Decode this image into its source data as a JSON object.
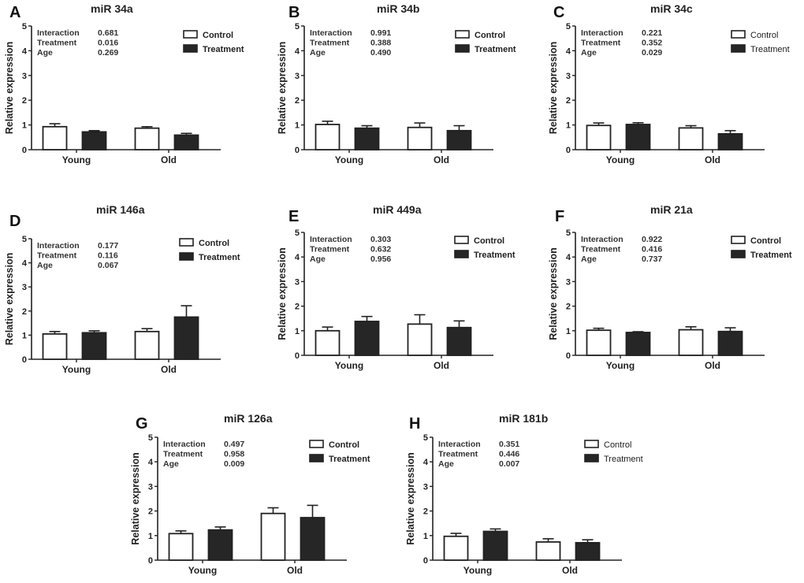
{
  "chart_data": [
    {
      "type": "bar",
      "panel": "A",
      "title": "miR 34a",
      "ylabel": "Relative expression",
      "xlabel": "",
      "ylim": [
        0,
        5
      ],
      "yticks": [
        "0",
        "1",
        "2",
        "3",
        "4",
        "5"
      ],
      "categories": [
        "Young",
        "Old"
      ],
      "stats": [
        {
          "label": "Interaction",
          "value": "0.681"
        },
        {
          "label": "Treatment",
          "value": "0.016"
        },
        {
          "label": "Age",
          "value": "0.269"
        }
      ],
      "series": [
        {
          "name": "Control",
          "fill": "#ffffff",
          "values": [
            0.93,
            0.87
          ],
          "errors": [
            0.12,
            0.06
          ]
        },
        {
          "name": "Treatment",
          "fill": "#262626",
          "values": [
            0.72,
            0.59
          ],
          "errors": [
            0.05,
            0.07
          ]
        }
      ],
      "legend_position": "top-right",
      "legend_style": "bold"
    },
    {
      "type": "bar",
      "panel": "B",
      "title": "miR 34b",
      "ylabel": "Relative expression",
      "xlabel": "",
      "ylim": [
        0,
        5
      ],
      "yticks": [
        "0",
        "1",
        "2",
        "3",
        "4",
        "5"
      ],
      "categories": [
        "Young",
        "Old"
      ],
      "stats": [
        {
          "label": "Interaction",
          "value": "0.991"
        },
        {
          "label": "Treatment",
          "value": "0.388"
        },
        {
          "label": "Age",
          "value": "0.490"
        }
      ],
      "series": [
        {
          "name": "Control",
          "fill": "#ffffff",
          "values": [
            1.02,
            0.9
          ],
          "errors": [
            0.13,
            0.18
          ]
        },
        {
          "name": "Treatment",
          "fill": "#262626",
          "values": [
            0.87,
            0.77
          ],
          "errors": [
            0.1,
            0.2
          ]
        }
      ],
      "legend_position": "top-right",
      "legend_style": "bold"
    },
    {
      "type": "bar",
      "panel": "C",
      "title": "miR 34c",
      "ylabel": "Relative expression",
      "xlabel": "",
      "ylim": [
        0,
        5
      ],
      "yticks": [
        "0",
        "1",
        "2",
        "3",
        "4",
        "5"
      ],
      "categories": [
        "Young",
        "Old"
      ],
      "stats": [
        {
          "label": "Interaction",
          "value": "0.221"
        },
        {
          "label": "Treatment",
          "value": "0.352"
        },
        {
          "label": "Age",
          "value": "0.029"
        }
      ],
      "series": [
        {
          "name": "Control",
          "fill": "#ffffff",
          "values": [
            0.98,
            0.88
          ],
          "errors": [
            0.1,
            0.09
          ]
        },
        {
          "name": "Treatment",
          "fill": "#262626",
          "values": [
            1.02,
            0.64
          ],
          "errors": [
            0.07,
            0.13
          ]
        }
      ],
      "legend_position": "top-right",
      "legend_style": "normal"
    },
    {
      "type": "bar",
      "panel": "D",
      "title": "miR 146a",
      "ylabel": "Relative expression",
      "xlabel": "",
      "ylim": [
        0,
        5
      ],
      "yticks": [
        "0",
        "1",
        "2",
        "3",
        "4",
        "5"
      ],
      "categories": [
        "Young",
        "Old"
      ],
      "stats": [
        {
          "label": "Interaction",
          "value": "0.177"
        },
        {
          "label": "Treatment",
          "value": "0.116"
        },
        {
          "label": "Age",
          "value": "0.067"
        }
      ],
      "series": [
        {
          "name": "Control",
          "fill": "#ffffff",
          "values": [
            1.05,
            1.15
          ],
          "errors": [
            0.1,
            0.12
          ]
        },
        {
          "name": "Treatment",
          "fill": "#262626",
          "values": [
            1.1,
            1.75
          ],
          "errors": [
            0.08,
            0.47
          ]
        }
      ],
      "legend_position": "top-right",
      "legend_style": "bold"
    },
    {
      "type": "bar",
      "panel": "E",
      "title": "miR 449a",
      "ylabel": "Relative expression",
      "xlabel": "",
      "ylim": [
        0,
        5
      ],
      "yticks": [
        "0",
        "1",
        "2",
        "3",
        "4",
        "5"
      ],
      "categories": [
        "Young",
        "Old"
      ],
      "stats": [
        {
          "label": "Interaction",
          "value": "0.303"
        },
        {
          "label": "Treatment",
          "value": "0.632"
        },
        {
          "label": "Age",
          "value": "0.956"
        }
      ],
      "series": [
        {
          "name": "Control",
          "fill": "#ffffff",
          "values": [
            1.0,
            1.27
          ],
          "errors": [
            0.15,
            0.38
          ]
        },
        {
          "name": "Treatment",
          "fill": "#262626",
          "values": [
            1.38,
            1.13
          ],
          "errors": [
            0.2,
            0.27
          ]
        }
      ],
      "legend_position": "top-right",
      "legend_style": "bold"
    },
    {
      "type": "bar",
      "panel": "F",
      "title": "miR 21a",
      "ylabel": "Relative expression",
      "xlabel": "",
      "ylim": [
        0,
        5
      ],
      "yticks": [
        "0",
        "1",
        "2",
        "3",
        "4",
        "5"
      ],
      "categories": [
        "Young",
        "Old"
      ],
      "stats": [
        {
          "label": "Interaction",
          "value": "0.922"
        },
        {
          "label": "Treatment",
          "value": "0.416"
        },
        {
          "label": "Age",
          "value": "0.737"
        }
      ],
      "series": [
        {
          "name": "Control",
          "fill": "#ffffff",
          "values": [
            1.02,
            1.04
          ],
          "errors": [
            0.08,
            0.12
          ]
        },
        {
          "name": "Treatment",
          "fill": "#262626",
          "values": [
            0.93,
            0.97
          ],
          "errors": [
            0.03,
            0.15
          ]
        }
      ],
      "legend_position": "top-right",
      "legend_style": "bold"
    },
    {
      "type": "bar",
      "panel": "G",
      "title": "miR 126a",
      "ylabel": "Relative expression",
      "xlabel": "",
      "ylim": [
        0,
        5
      ],
      "yticks": [
        "0",
        "1",
        "2",
        "3",
        "4",
        "5"
      ],
      "categories": [
        "Young",
        "Old"
      ],
      "stats": [
        {
          "label": "Interaction",
          "value": "0.497"
        },
        {
          "label": "Treatment",
          "value": "0.958"
        },
        {
          "label": "Age",
          "value": "0.009"
        }
      ],
      "series": [
        {
          "name": "Control",
          "fill": "#ffffff",
          "values": [
            1.08,
            1.9
          ],
          "errors": [
            0.11,
            0.23
          ]
        },
        {
          "name": "Treatment",
          "fill": "#262626",
          "values": [
            1.23,
            1.73
          ],
          "errors": [
            0.12,
            0.5
          ]
        }
      ],
      "legend_position": "top-right",
      "legend_style": "bold"
    },
    {
      "type": "bar",
      "panel": "H",
      "title": "miR 181b",
      "ylabel": "Relative expression",
      "xlabel": "",
      "ylim": [
        0,
        5
      ],
      "yticks": [
        "0",
        "1",
        "2",
        "3",
        "4",
        "5"
      ],
      "categories": [
        "Young",
        "Old"
      ],
      "stats": [
        {
          "label": "Interaction",
          "value": "0.351"
        },
        {
          "label": "Treatment",
          "value": "0.446"
        },
        {
          "label": "Age",
          "value": "0.007"
        }
      ],
      "series": [
        {
          "name": "Control",
          "fill": "#ffffff",
          "values": [
            0.97,
            0.74
          ],
          "errors": [
            0.12,
            0.13
          ]
        },
        {
          "name": "Treatment",
          "fill": "#262626",
          "values": [
            1.17,
            0.71
          ],
          "errors": [
            0.1,
            0.12
          ]
        }
      ],
      "legend_position": "top-right",
      "legend_style": "normal"
    }
  ]
}
